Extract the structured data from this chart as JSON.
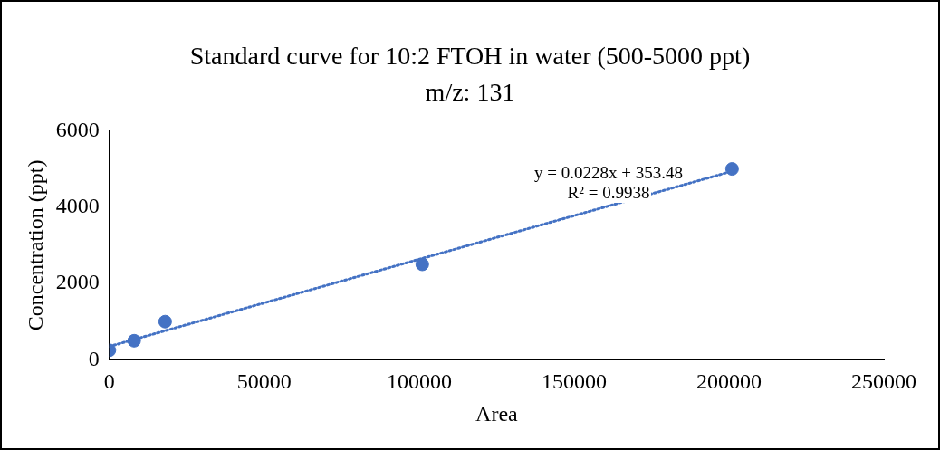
{
  "chart_data": {
    "type": "scatter",
    "title": "Standard curve for 10:2 FTOH in water (500-5000 ppt) m/z: 131",
    "xlabel": "Area",
    "ylabel": "Concentration (ppt)",
    "x": [
      0,
      8000,
      18000,
      101000,
      201000
    ],
    "series": [
      {
        "type": "scatter",
        "color": "#4472c4",
        "values": [
          250,
          500,
          1000,
          2500,
          5000
        ],
        "marker": "circle"
      },
      {
        "type": "line",
        "color": "#4472c4",
        "x": [
          0,
          201000
        ],
        "values": [
          350,
          4940
        ],
        "line_style": "dotted",
        "marker": "none"
      }
    ],
    "annotations": [
      "y = 0.0228x + 353.48",
      "R² = 0.9938"
    ],
    "xlim": [
      0,
      250000
    ],
    "xticks": [
      0,
      50000,
      100000,
      150000,
      200000,
      250000
    ],
    "ylim": [
      0,
      6000
    ],
    "yticks": [
      0,
      2000,
      4000,
      6000
    ],
    "grid": false,
    "legend": false
  }
}
